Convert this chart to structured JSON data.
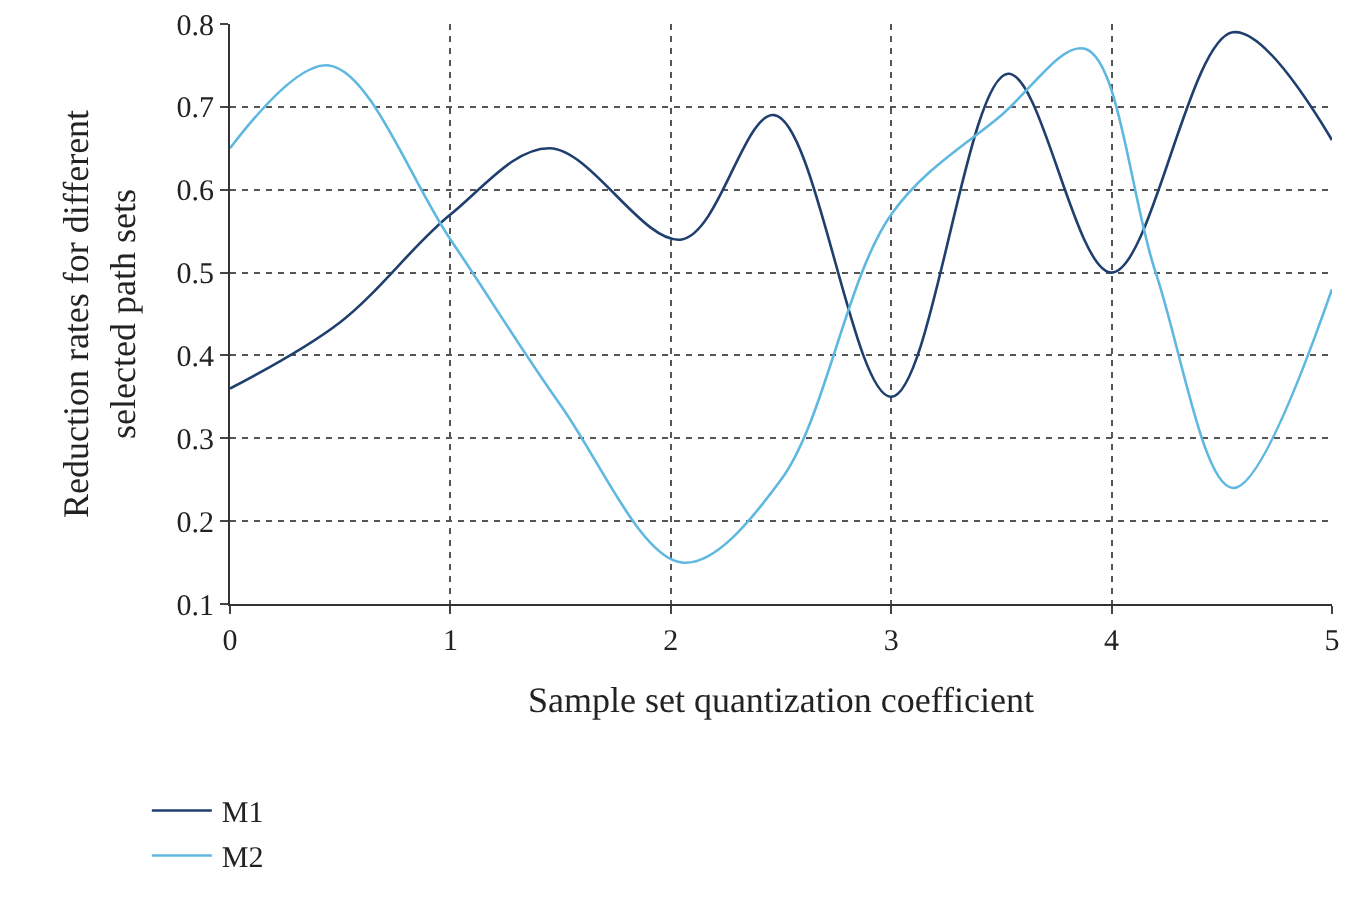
{
  "chart_data": {
    "type": "line",
    "xlabel": "Sample set quantization coefficient",
    "ylabel": "Reduction rates for different selected path sets",
    "xlim": [
      0,
      5
    ],
    "xticks": [
      0,
      1,
      2,
      3,
      4,
      5
    ],
    "ylim": [
      0.1,
      0.8
    ],
    "yticks": [
      0.1,
      0.2,
      0.3,
      0.4,
      0.5,
      0.6,
      0.7,
      0.8
    ],
    "grid": true,
    "legend": "bottom left",
    "marker": "none",
    "line_style": "solid",
    "series": [
      {
        "name": "M1",
        "color": "#1f3f6e",
        "x": [
          0,
          0.5,
          1,
          1.45,
          2.05,
          2.47,
          3.0,
          3.53,
          4.0,
          4.55,
          5
        ],
        "values": [
          0.36,
          0.44,
          0.57,
          0.65,
          0.54,
          0.69,
          0.35,
          0.74,
          0.5,
          0.79,
          0.66
        ]
      },
      {
        "name": "M2",
        "color": "#5fb8e0",
        "x": [
          0,
          0.45,
          1,
          1.5,
          2.05,
          2.5,
          3.0,
          3.5,
          3.88,
          4.2,
          4.55,
          5
        ],
        "values": [
          0.65,
          0.75,
          0.54,
          0.34,
          0.15,
          0.25,
          0.57,
          0.69,
          0.77,
          0.5,
          0.24,
          0.48
        ]
      }
    ]
  }
}
